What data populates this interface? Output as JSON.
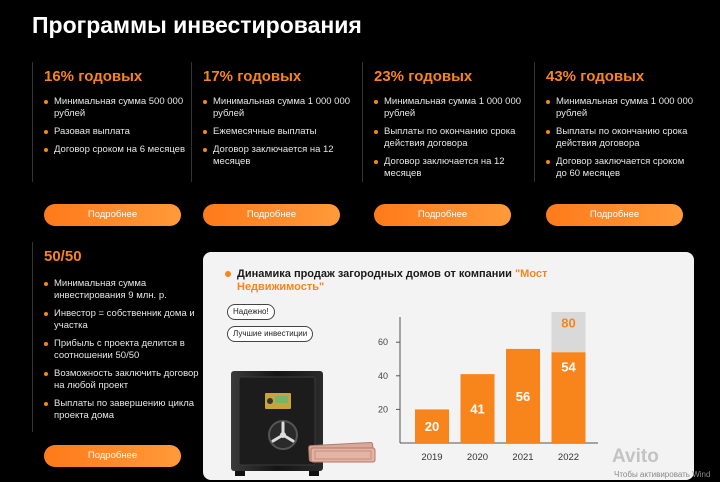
{
  "title": "Программы инвестирования",
  "plans": [
    {
      "rate": "16% годовых",
      "items": [
        "Минимальная сумма 500 000 рублей",
        "Разовая выплата",
        "Договор сроком на 6 месяцев"
      ],
      "button": "Подробнее"
    },
    {
      "rate": "17% годовых",
      "items": [
        "Минимальная сумма 1 000 000 рублей",
        "Ежемесячные выплаты",
        "Договор заключается на 12 месяцев"
      ],
      "button": "Подробнее"
    },
    {
      "rate": "23% годовых",
      "items": [
        "Минимальная сумма 1 000 000 рублей",
        "Выплаты по окончанию срока действия договора",
        "Договор заключается на 12 месяцев"
      ],
      "button": "Подробнее"
    },
    {
      "rate": "43% годовых",
      "items": [
        "Минимальная сумма 1 000 000 рублей",
        "Выплаты по окончанию срока действия договора",
        "Договор заключается сроком до 60 месяцев"
      ],
      "button": "Подробнее"
    },
    {
      "rate": "50/50",
      "items": [
        "Минимальная сумма инвестирования 9 млн. р.",
        "Инвестор = собственник дома и участка",
        "Прибыль с проекта делится в соотношении 50/50",
        "Возможность заключить договор на любой проект",
        "Выплаты по завершению цикла проекта дома"
      ],
      "button": "Подробнее"
    }
  ],
  "panel": {
    "title_part1": "Динамика продаж загородных домов от компании ",
    "title_highlight": "\"Мост Недвижимость\"",
    "pill1": "Надежно!",
    "pill2": "Лучшие инвестиции"
  },
  "colors": {
    "accent": "#f7851c",
    "bar_total": "#d9d9d9"
  },
  "chart_data": {
    "type": "bar",
    "categories": [
      "2019",
      "2020",
      "2021",
      "2022"
    ],
    "series": [
      {
        "values": [
          20,
          41,
          56,
          54
        ]
      },
      {
        "values": [
          20,
          41,
          56,
          80
        ]
      }
    ],
    "data_labels": [
      "20",
      "41",
      "56",
      "54",
      "80"
    ],
    "yticks": [
      20,
      40,
      60
    ],
    "ylim": [
      0,
      75
    ]
  },
  "watermark": {
    "logo": "Avito",
    "text": "Чтобы активировать Wind"
  }
}
